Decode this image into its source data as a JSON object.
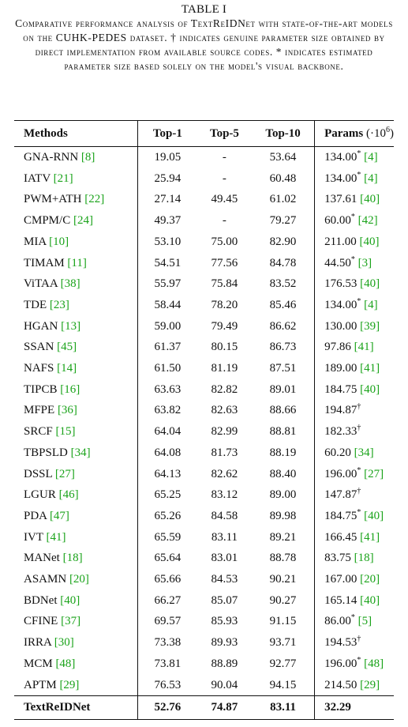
{
  "table_label": "TABLE I",
  "caption": "Comparative performance analysis of TextReIDNet with state-of-the-art models on the CUHK-PEDES dataset. † indicates genuine parameter size obtained by direct implementation from available source codes. * indicates estimated parameter size based solely on the model's visual backbone.",
  "columns": {
    "methods": "Methods",
    "top1": "Top-1",
    "top5": "Top-5",
    "top10": "Top-10",
    "params": "Params",
    "params_unit": "(·10",
    "params_unit_exp": "6",
    "params_unit_close": ")"
  },
  "rows": [
    {
      "method": "GNA-RNN",
      "ref": "[8]",
      "top1": "19.05",
      "top5": "-",
      "top10": "53.64",
      "params": "134.00",
      "mark": "*",
      "pref": "[4]"
    },
    {
      "method": "IATV",
      "ref": "[21]",
      "top1": "25.94",
      "top5": "-",
      "top10": "60.48",
      "params": "134.00",
      "mark": "*",
      "pref": "[4]"
    },
    {
      "method": "PWM+ATH",
      "ref": "[22]",
      "top1": "27.14",
      "top5": "49.45",
      "top10": "61.02",
      "params": "137.61",
      "mark": "",
      "pref": "[40]"
    },
    {
      "method": "CMPM/C",
      "ref": "[24]",
      "top1": "49.37",
      "top5": "-",
      "top10": "79.27",
      "params": "60.00",
      "mark": "*",
      "pref": "[42]"
    },
    {
      "method": "MIA",
      "ref": "[10]",
      "top1": "53.10",
      "top5": "75.00",
      "top10": "82.90",
      "params": "211.00",
      "mark": "",
      "pref": "[40]"
    },
    {
      "method": "TIMAM",
      "ref": "[11]",
      "top1": "54.51",
      "top5": "77.56",
      "top10": "84.78",
      "params": "44.50",
      "mark": "*",
      "pref": "[3]"
    },
    {
      "method": "ViTAA",
      "ref": "[38]",
      "top1": "55.97",
      "top5": "75.84",
      "top10": "83.52",
      "params": "176.53",
      "mark": "",
      "pref": "[40]"
    },
    {
      "method": "TDE",
      "ref": "[23]",
      "top1": "58.44",
      "top5": "78.20",
      "top10": "85.46",
      "params": "134.00",
      "mark": "*",
      "pref": "[4]"
    },
    {
      "method": "HGAN",
      "ref": "[13]",
      "top1": "59.00",
      "top5": "79.49",
      "top10": "86.62",
      "params": "130.00",
      "mark": "",
      "pref": "[39]"
    },
    {
      "method": "SSAN",
      "ref": "[45]",
      "top1": "61.37",
      "top5": "80.15",
      "top10": "86.73",
      "params": "97.86",
      "mark": "",
      "pref": "[41]"
    },
    {
      "method": "NAFS",
      "ref": "[14]",
      "top1": "61.50",
      "top5": "81.19",
      "top10": "87.51",
      "params": "189.00",
      "mark": "",
      "pref": "[41]"
    },
    {
      "method": "TIPCB",
      "ref": "[16]",
      "top1": "63.63",
      "top5": "82.82",
      "top10": "89.01",
      "params": "184.75",
      "mark": "",
      "pref": "[40]"
    },
    {
      "method": "MFPE",
      "ref": "[36]",
      "top1": "63.82",
      "top5": "82.63",
      "top10": "88.66",
      "params": "194.87",
      "mark": "†",
      "pref": ""
    },
    {
      "method": "SRCF",
      "ref": "[15]",
      "top1": "64.04",
      "top5": "82.99",
      "top10": "88.81",
      "params": "182.33",
      "mark": "†",
      "pref": ""
    },
    {
      "method": "TBPSLD",
      "ref": "[34]",
      "top1": "64.08",
      "top5": "81.73",
      "top10": "88.19",
      "params": "60.20",
      "mark": "",
      "pref": "[34]"
    },
    {
      "method": "DSSL",
      "ref": "[27]",
      "top1": "64.13",
      "top5": "82.62",
      "top10": "88.40",
      "params": "196.00",
      "mark": "*",
      "pref": "[27]"
    },
    {
      "method": "LGUR",
      "ref": "[46]",
      "top1": "65.25",
      "top5": "83.12",
      "top10": "89.00",
      "params": "147.87",
      "mark": "†",
      "pref": ""
    },
    {
      "method": "PDA",
      "ref": "[47]",
      "top1": "65.26",
      "top5": "84.58",
      "top10": "89.98",
      "params": "184.75",
      "mark": "*",
      "pref": "[40]"
    },
    {
      "method": "IVT",
      "ref": "[41]",
      "top1": "65.59",
      "top5": "83.11",
      "top10": "89.21",
      "params": "166.45",
      "mark": "",
      "pref": "[41]"
    },
    {
      "method": "MANet",
      "ref": "[18]",
      "top1": "65.64",
      "top5": "83.01",
      "top10": "88.78",
      "params": "83.75",
      "mark": "",
      "pref": "[18]"
    },
    {
      "method": "ASAMN",
      "ref": "[20]",
      "top1": "65.66",
      "top5": "84.53",
      "top10": "90.21",
      "params": "167.00",
      "mark": "",
      "pref": "[20]"
    },
    {
      "method": "BDNet",
      "ref": "[40]",
      "top1": "66.27",
      "top5": "85.07",
      "top10": "90.27",
      "params": "165.14",
      "mark": "",
      "pref": "[40]"
    },
    {
      "method": "CFINE",
      "ref": "[37]",
      "top1": "69.57",
      "top5": "85.93",
      "top10": "91.15",
      "params": "86.00",
      "mark": "*",
      "pref": "[5]"
    },
    {
      "method": "IRRA",
      "ref": "[30]",
      "top1": "73.38",
      "top5": "89.93",
      "top10": "93.71",
      "params": "194.53",
      "mark": "†",
      "pref": ""
    },
    {
      "method": "MCM",
      "ref": "[48]",
      "top1": "73.81",
      "top5": "88.89",
      "top10": "92.77",
      "params": "196.00",
      "mark": "*",
      "pref": "[48]"
    },
    {
      "method": "APTM",
      "ref": "[29]",
      "top1": "76.53",
      "top5": "90.04",
      "top10": "94.15",
      "params": "214.50",
      "mark": "",
      "pref": "[29]"
    }
  ],
  "final_row": {
    "method": "TextReIDNet",
    "top1": "52.76",
    "top5": "74.87",
    "top10": "83.11",
    "params": "32.29"
  },
  "colors": {
    "reference_link": "#1aa31a",
    "text": "#111111"
  }
}
